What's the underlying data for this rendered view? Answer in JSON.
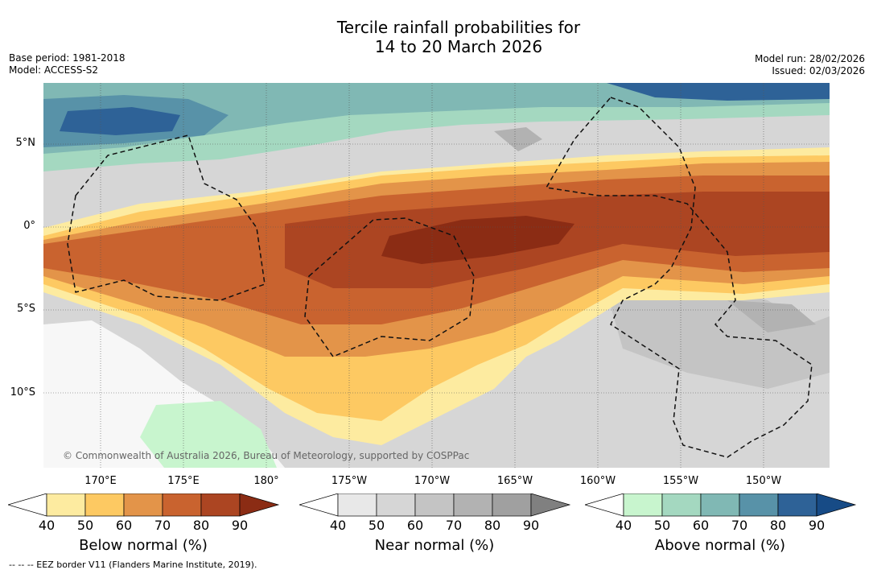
{
  "title_line1": "Tercile rainfall probabilities for",
  "title_line2": "14 to 20 March 2026",
  "base_period": "Base period: 1981-2018",
  "model": "Model: ACCESS-S2",
  "model_run": "Model run: 28/02/2026",
  "issued": "Issued: 02/03/2026",
  "lat_labels": [
    "5°N",
    "0°",
    "5°S",
    "10°S"
  ],
  "lon_labels": [
    "170°E",
    "175°E",
    "180°",
    "175°W",
    "170°W",
    "165°W",
    "160°W",
    "155°W",
    "150°W"
  ],
  "copyright": "© Commonwealth of Australia 2026, Bureau of Meteorology, supported by COSPPac",
  "footer": "-- -- -- EEZ border V11 (Flanders Marine Institute, 2019).",
  "colorbars": [
    {
      "label": "Below normal (%)",
      "ticks": [
        "40",
        "50",
        "60",
        "70",
        "80",
        "90"
      ],
      "colors": [
        "#ffffff",
        "#fdeba0",
        "#fdc962",
        "#e39449",
        "#c9632f",
        "#ac4522",
        "#8b2c14"
      ]
    },
    {
      "label": "Near normal (%)",
      "ticks": [
        "40",
        "50",
        "60",
        "70",
        "80",
        "90"
      ],
      "colors": [
        "#ffffff",
        "#e8e8e8",
        "#d6d6d6",
        "#c4c4c4",
        "#b2b2b2",
        "#a0a0a0",
        "#808080"
      ]
    },
    {
      "label": "Above normal (%)",
      "ticks": [
        "40",
        "50",
        "60",
        "70",
        "80",
        "90"
      ],
      "colors": [
        "#ffffff",
        "#c8f5ce",
        "#a4d8c0",
        "#80b8b4",
        "#5892a8",
        "#2e6297",
        "#174b86"
      ]
    }
  ]
}
